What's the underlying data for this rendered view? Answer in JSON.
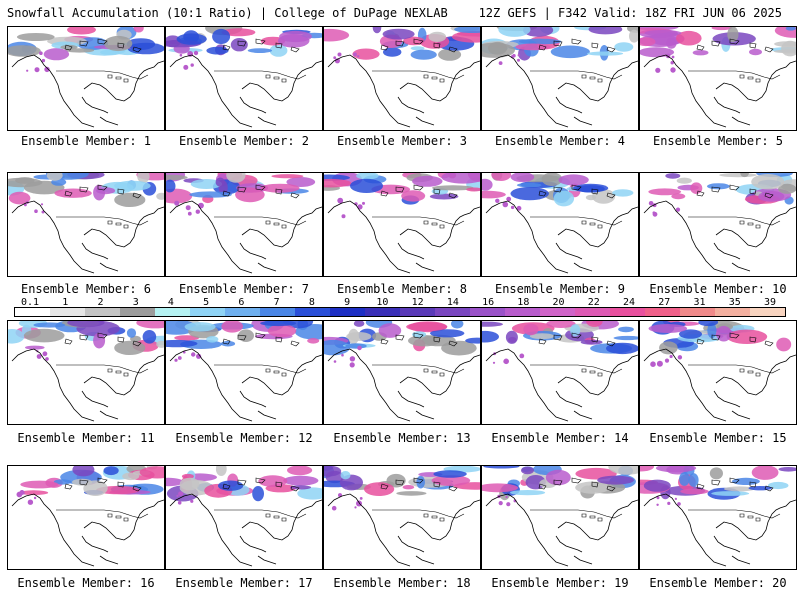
{
  "header": {
    "left": "Snowfall Accumulation (10:1 Ratio) | College of DuPage NEXLAB",
    "right": "12Z GEFS | F342 Valid: 18Z FRI JUN 06 2025"
  },
  "panel_label_prefix": "Ensemble Member:",
  "members": [
    "1",
    "2",
    "3",
    "4",
    "5",
    "6",
    "7",
    "8",
    "9",
    "10",
    "11",
    "12",
    "13",
    "14",
    "15",
    "16",
    "17",
    "18",
    "19",
    "20"
  ],
  "colorbar": {
    "ticks": [
      "0.1",
      "1",
      "2",
      "3",
      "4",
      "5",
      "6",
      "7",
      "8",
      "9",
      "10",
      "12",
      "14",
      "16",
      "18",
      "20",
      "22",
      "24",
      "27",
      "31",
      "35",
      "39"
    ],
    "colors": [
      "#ffffff",
      "#e6e6e6",
      "#c4c4c4",
      "#9c9c9c",
      "#b5f2f2",
      "#8fd3f5",
      "#6fb0ef",
      "#4a86e6",
      "#2a4fd8",
      "#1d2fc4",
      "#3a2fb8",
      "#5a3ab8",
      "#7a46c0",
      "#9a52c8",
      "#b85ccc",
      "#d064c8",
      "#de5ab4",
      "#e8509e",
      "#f0608a",
      "#f08a8a",
      "#f4b0a0",
      "#f8d4c0"
    ]
  }
}
